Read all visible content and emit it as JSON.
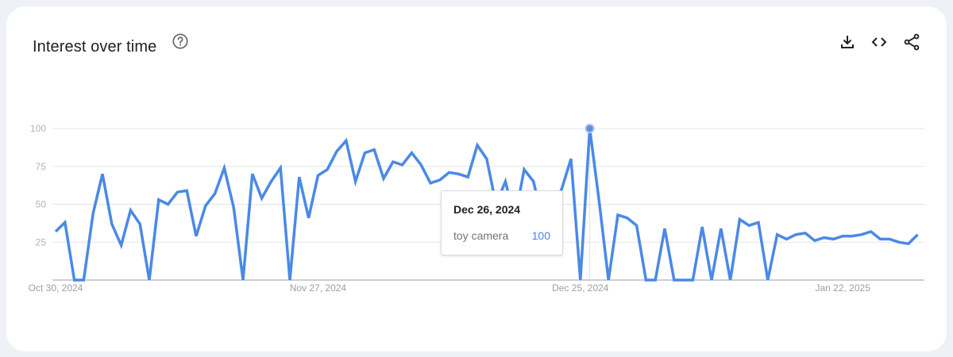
{
  "header": {
    "title": "Interest over time",
    "help_icon": "help-circle-icon",
    "actions": [
      {
        "name": "download",
        "icon": "download-icon"
      },
      {
        "name": "embed",
        "icon": "code-icon"
      },
      {
        "name": "share",
        "icon": "share-icon"
      }
    ]
  },
  "tooltip": {
    "date": "Dec 26, 2024",
    "term": "toy camera",
    "value": "100"
  },
  "colors": {
    "line": "#4a89e8",
    "grid": "#e5e5e5",
    "axis_text": "#9aa0a6",
    "background": "#eef1f6"
  },
  "chart_data": {
    "type": "line",
    "title": "Interest over time",
    "xlabel": "",
    "ylabel": "",
    "ylim": [
      0,
      100
    ],
    "yticks": [
      25,
      50,
      75,
      100
    ],
    "xtick_labels": [
      "Oct 30, 2024",
      "Nov 27, 2024",
      "Dec 25, 2024",
      "Jan 22, 2025"
    ],
    "xtick_indices": [
      0,
      28,
      56,
      84
    ],
    "grid": true,
    "legend": null,
    "x_start": "Oct 30, 2024",
    "x_end": "Jan 30, 2025",
    "series": [
      {
        "name": "toy camera",
        "values": [
          32,
          38,
          0,
          0,
          44,
          70,
          37,
          23,
          46,
          37,
          0,
          53,
          50,
          58,
          59,
          29,
          49,
          57,
          74,
          48,
          0,
          70,
          54,
          65,
          74,
          0,
          68,
          41,
          69,
          73,
          85,
          92,
          65,
          84,
          86,
          67,
          78,
          76,
          84,
          76,
          64,
          66,
          71,
          70,
          68,
          89,
          80,
          50,
          65,
          40,
          73,
          65,
          38,
          48,
          60,
          80,
          0,
          100,
          52,
          0,
          43,
          41,
          36,
          0,
          0,
          34,
          0,
          0,
          0,
          35,
          0,
          34,
          0,
          40,
          36,
          38,
          0,
          30,
          27,
          30,
          31,
          26,
          28,
          27,
          29,
          29,
          30,
          32,
          27,
          27,
          25,
          24,
          30
        ]
      }
    ],
    "highlight": {
      "index": 57,
      "date": "Dec 26, 2024",
      "value": 100
    }
  }
}
